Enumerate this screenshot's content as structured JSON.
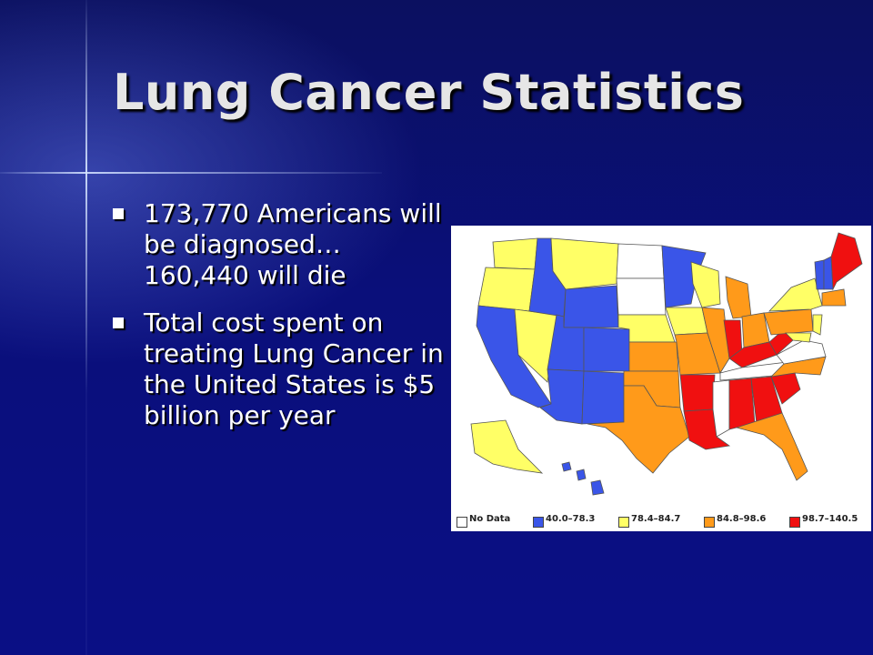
{
  "slide": {
    "title": "Lung Cancer Statistics",
    "bullets": [
      "173,770 Americans will be diagnosed…160,440 will die",
      "Total cost spent on treating Lung Cancer in the United States is $5 billion per year"
    ]
  },
  "map": {
    "legend": [
      {
        "label": "No Data",
        "color": "#ffffff"
      },
      {
        "label": "40.0–78.3",
        "color": "#3a55e8"
      },
      {
        "label": "78.4–84.7",
        "color": "#ffff66"
      },
      {
        "label": "84.8–98.6",
        "color": "#ff9a1a"
      },
      {
        "label": "98.7–140.5",
        "color": "#f01010"
      }
    ]
  }
}
